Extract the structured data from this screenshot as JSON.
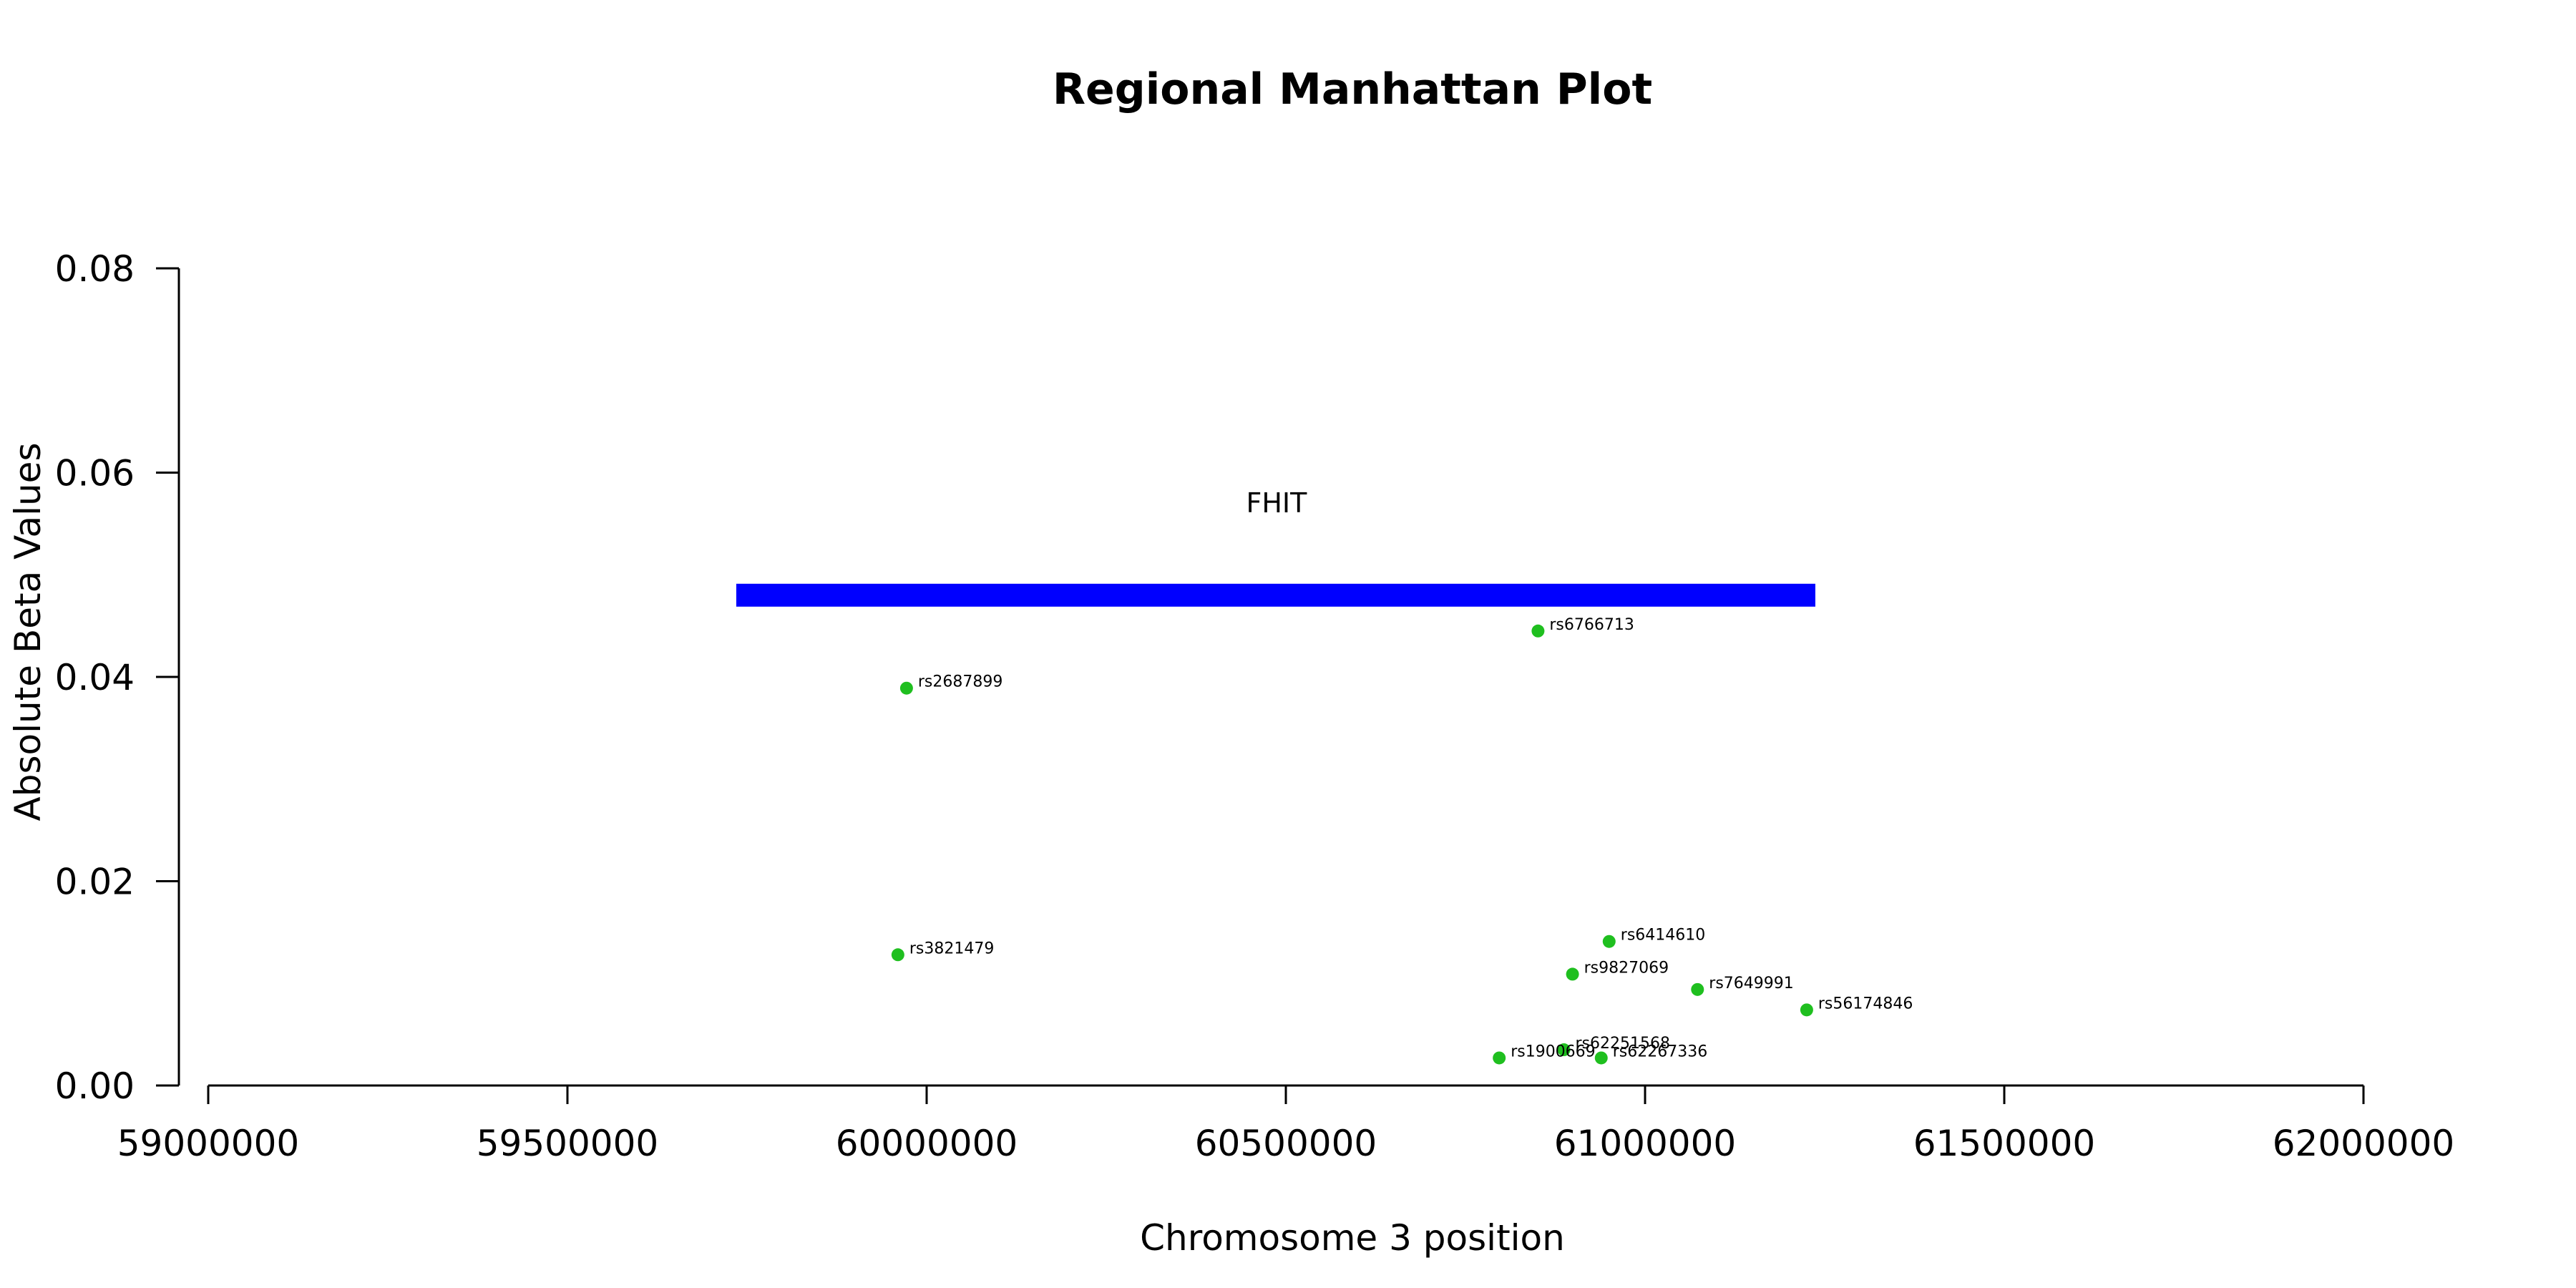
{
  "chart_data": {
    "type": "scatter",
    "title": "Regional Manhattan Plot",
    "xlabel": "Chromosome 3 position",
    "ylabel": "Absolute Beta Values",
    "xlim": [
      59000000,
      62000000
    ],
    "ylim": [
      0,
      0.08
    ],
    "x_ticks": [
      59000000,
      59500000,
      60000000,
      60500000,
      61000000,
      61500000,
      62000000
    ],
    "x_tick_labels": [
      "59000000",
      "59500000",
      "60000000",
      "60500000",
      "61000000",
      "61500000",
      "62000000"
    ],
    "y_ticks": [
      0,
      0.02,
      0.04,
      0.06,
      0.08
    ],
    "y_tick_labels": [
      "0.00",
      "0.02",
      "0.04",
      "0.06",
      "0.08"
    ],
    "point_color": "#1fbf1f",
    "gene": {
      "name": "FHIT",
      "start": 59735000,
      "end": 61237000,
      "y": 0.048,
      "color": "#0000ff"
    },
    "points": [
      {
        "label": "rs2687899",
        "x": 59972000,
        "y": 0.0389
      },
      {
        "label": "rs3821479",
        "x": 59960000,
        "y": 0.0128
      },
      {
        "label": "rs6766713",
        "x": 60851000,
        "y": 0.0445
      },
      {
        "label": "rs6414610",
        "x": 60950000,
        "y": 0.0141
      },
      {
        "label": "rs9827069",
        "x": 60899000,
        "y": 0.0109
      },
      {
        "label": "rs7649991",
        "x": 61073000,
        "y": 0.0094
      },
      {
        "label": "rs56174846",
        "x": 61225000,
        "y": 0.0074
      },
      {
        "label": "rs62251568",
        "x": 60887000,
        "y": 0.0035
      },
      {
        "label": "rs1900669",
        "x": 60797000,
        "y": 0.0027
      },
      {
        "label": "rs62267336",
        "x": 60939000,
        "y": 0.0027
      }
    ]
  }
}
